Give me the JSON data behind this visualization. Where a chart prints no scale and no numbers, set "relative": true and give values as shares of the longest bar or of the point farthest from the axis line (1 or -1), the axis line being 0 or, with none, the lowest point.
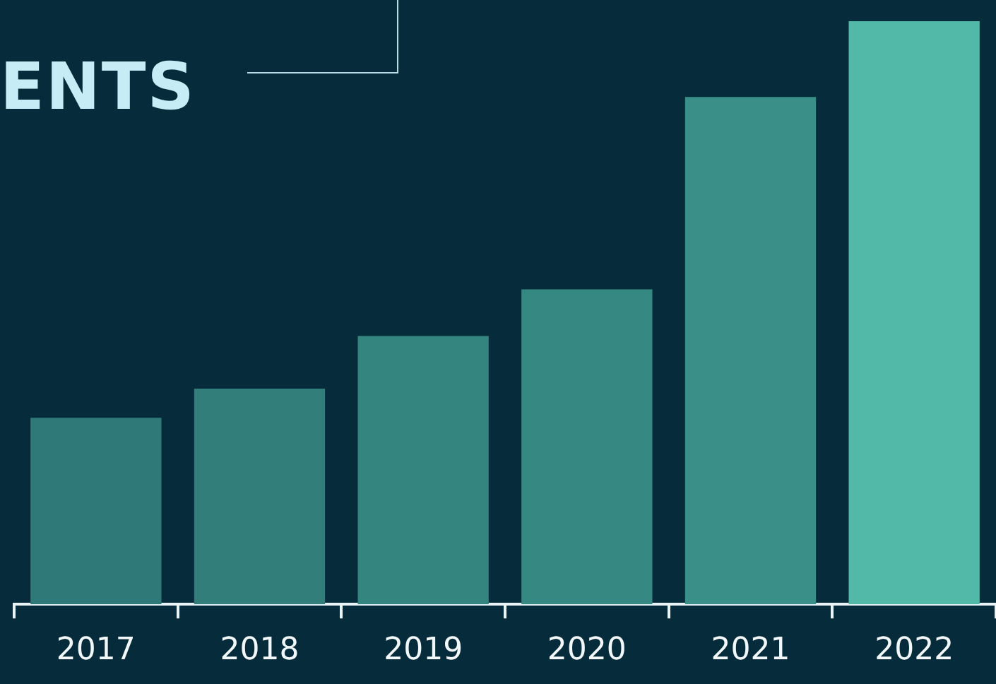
{
  "chart_data": {
    "type": "bar",
    "title": "ENTS",
    "relative": true,
    "categories": [
      "2017",
      "2018",
      "2019",
      "2020",
      "2021",
      "2022"
    ],
    "values": [
      0.32,
      0.37,
      0.46,
      0.54,
      0.87,
      1
    ],
    "colors": [
      "#2f7a78",
      "#317e7b",
      "#34847f",
      "#368983",
      "#3a9088",
      "#52b8a8"
    ],
    "grid": false,
    "legend": false
  }
}
